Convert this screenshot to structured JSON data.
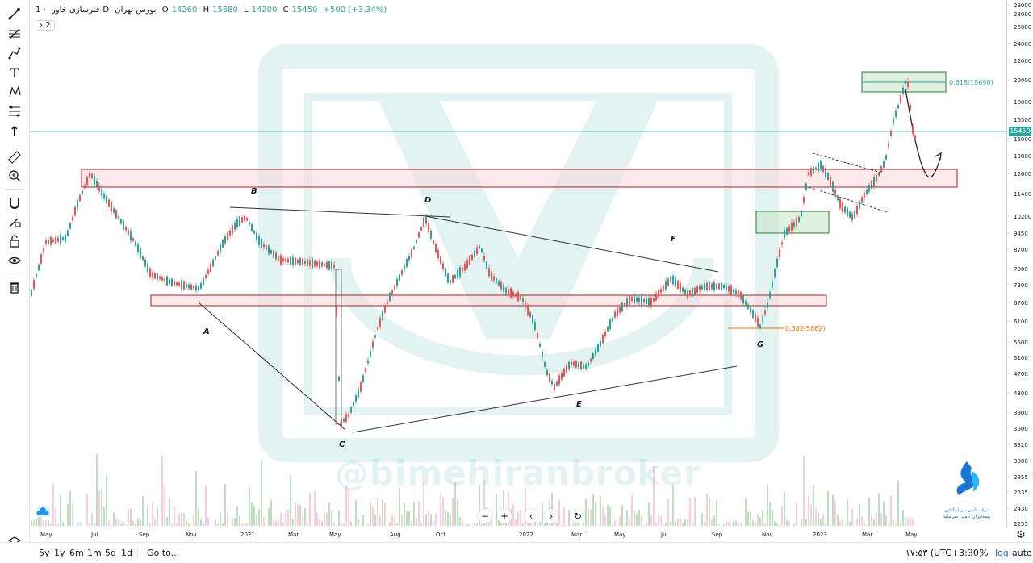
{
  "legend": {
    "symbol": "فنرسازی خاور",
    "separator": "·",
    "interval": "1D",
    "exchange": "بورس تهران",
    "open_label": "O",
    "open": "14260",
    "high_label": "H",
    "high": "15680",
    "low_label": "L",
    "low": "14200",
    "close_label": "C",
    "close": "15450",
    "change": "+500 (+3.34%)",
    "collapse_count": "2"
  },
  "price_axis": {
    "current_price": "15450",
    "ticks": [
      "29000",
      "28000",
      "26000",
      "24000",
      "22000",
      "20000",
      "18000",
      "16500",
      "15000",
      "13800",
      "12600",
      "11400",
      "10200",
      "9450",
      "8700",
      "7900",
      "7300",
      "6700",
      "6100",
      "5500",
      "5100",
      "4700",
      "4300",
      "3900",
      "3600",
      "3320",
      "3080",
      "2855",
      "2635",
      "2430",
      "2255"
    ]
  },
  "time_axis": [
    "May",
    "Jul",
    "Sep",
    "Nov",
    "2021",
    "Mar",
    "May",
    "Aug",
    "Oct",
    "2022",
    "Mar",
    "May",
    "Jul",
    "Sep",
    "Nov",
    "2023",
    "Mar",
    "May"
  ],
  "annotations": {
    "points": [
      "A",
      "B",
      "C",
      "D",
      "E",
      "F",
      "G"
    ],
    "fib_top": "0.618(19690)",
    "fib_bottom": "0.382(5862)"
  },
  "watermark": "@bimehiranbroker",
  "logo_text": [
    "شرکت تأمین سرمایه‌گذاری",
    "بیمه‌ایران تأمین سرمایه"
  ],
  "bottom_bar": {
    "ranges": [
      "5y",
      "1y",
      "6m",
      "1m",
      "5d",
      "1d"
    ],
    "goto": "Go to...",
    "clock": "۱۷:۵۳ (UTC+3:30)",
    "percent": "%",
    "log": "log",
    "auto": "auto"
  },
  "colors": {
    "up": "#26a69a",
    "down": "#ef5350",
    "zone_red": "#e57373",
    "zone_green": "#81c784"
  },
  "icons": [
    "crosshair-icon",
    "trendline-icon",
    "path-icon",
    "text-icon",
    "pattern-icon",
    "fib-icon",
    "arrow-icon",
    "ruler-icon",
    "zoom-icon",
    "magnet-icon",
    "lock-drawing-icon",
    "unlock-icon",
    "eye-icon",
    "trash-icon",
    "layers-icon"
  ]
}
